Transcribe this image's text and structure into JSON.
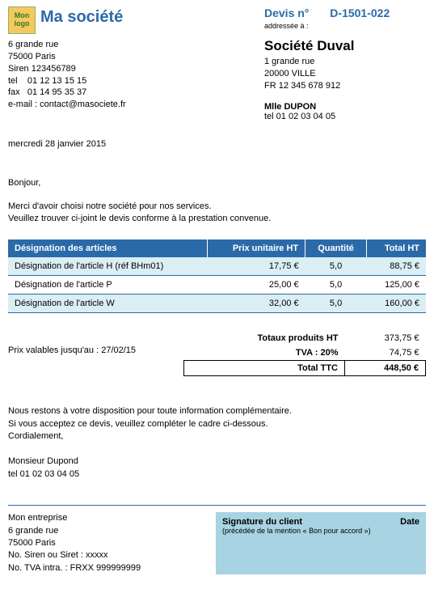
{
  "colors": {
    "brand_blue": "#2b6aa8",
    "header_bg": "#2b6aa8",
    "header_text": "#ffffff",
    "row_stripe": "#daeef4",
    "sig_box_bg": "#a7d3e2",
    "logo_bg": "#f5c95e",
    "logo_border": "#8fb068",
    "logo_text": "#2b7a2b"
  },
  "logo_text": "Mon logo",
  "company": {
    "name": "Ma société",
    "address_line1": "6 grande rue",
    "address_line2": "75000 Paris",
    "siren": "Siren 123456789",
    "tel": "tel    01 12 13 15 15",
    "fax": "fax   01 14 95 35 37",
    "email": "e-mail : contact@masociete.fr"
  },
  "quote": {
    "label": "Devis n°",
    "number": "D-1501-022",
    "addressee_label": "addressée à :"
  },
  "client": {
    "name": "Société Duval",
    "address_line1": "1 grande rue",
    "address_line2": "20000 VILLE",
    "vat": "FR 12 345 678 912",
    "contact_name": "Mlle DUPON",
    "contact_tel": "tel 01 02 03 04 05"
  },
  "date": "mercredi 28 janvier 2015",
  "greeting": "Bonjour,",
  "body_line1": "Merci d'avoir choisi notre société pour nos services.",
  "body_line2": "Veuillez trouver ci-joint le devis conforme à la prestation convenue.",
  "table": {
    "columns": [
      "Désignation des articles",
      "Prix unitaire HT",
      "Quantité",
      "Total HT"
    ],
    "rows": [
      {
        "designation": "Désignation de l'article H (réf BHm01)",
        "unit_price": "17,75 €",
        "qty": "5,0",
        "total": "88,75 €"
      },
      {
        "designation": "Désignation de l'article P",
        "unit_price": "25,00 €",
        "qty": "5,0",
        "total": "125,00 €"
      },
      {
        "designation": "Désignation de l'article W",
        "unit_price": "32,00 €",
        "qty": "5,0",
        "total": "160,00 €"
      }
    ]
  },
  "valid_until": "Prix valables jusqu'au : 27/02/15",
  "totals": {
    "subtotal_label": "Totaux produits HT",
    "subtotal_value": "373,75 €",
    "vat_label": "TVA : 20%",
    "vat_value": "74,75 €",
    "grand_label": "Total TTC",
    "grand_value": "448,50 €"
  },
  "closing": {
    "line1": "Nous restons à votre disposition pour toute information complémentaire.",
    "line2": "Si vous acceptez ce devis, veuillez compléter le cadre ci-dessous.",
    "line3": "Cordialement,"
  },
  "signer": {
    "name": "Monsieur Dupond",
    "tel": "tel 01 02 03 04 05"
  },
  "footer": {
    "company": "Mon entreprise",
    "address_line1": "6 grande rue",
    "address_line2": "75000 Paris",
    "siren": "No. Siren ou Siret : xxxxx",
    "vat": "No. TVA intra. : FRXX 999999999"
  },
  "signature_box": {
    "title": "Signature du client",
    "subtitle": "(précédée de la mention « Bon pour accord »)",
    "date_label": "Date"
  }
}
